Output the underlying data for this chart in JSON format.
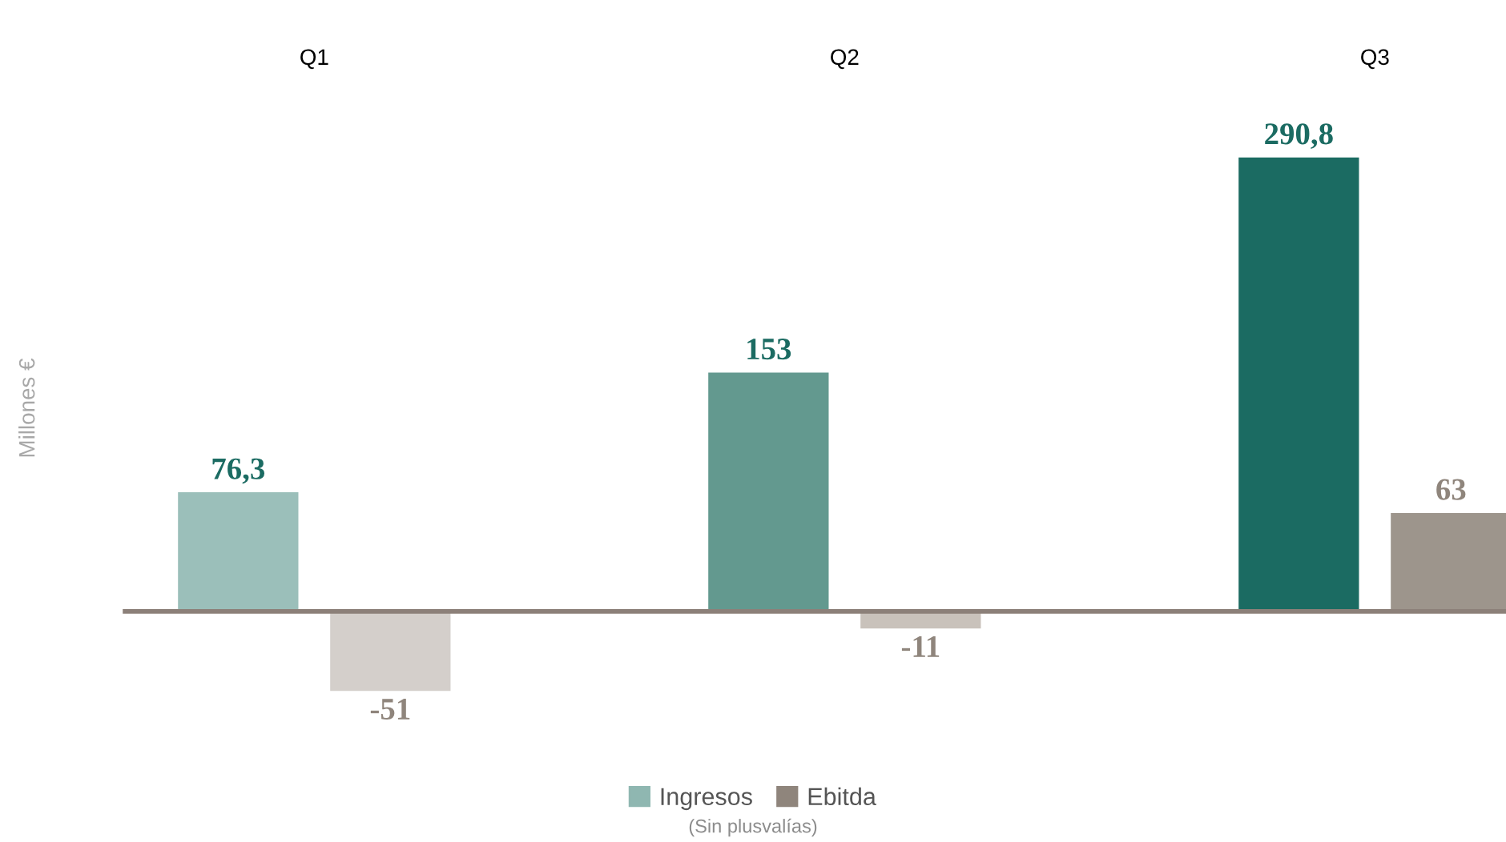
{
  "chart_data": {
    "type": "bar",
    "categories": [
      "Q1",
      "Q2",
      "Q3"
    ],
    "ylabel": "Millones €",
    "grid": false,
    "legend": "bottom",
    "tick_labels": "x",
    "series": [
      {
        "name": "Ingresos",
        "color": "#8fb7b1",
        "colors": [
          "#9bbfba",
          "#63998f",
          "#1b6b62"
        ],
        "values": [
          76.3,
          153,
          290.8
        ],
        "value_labels": [
          "76,3",
          "153",
          "290,8"
        ]
      },
      {
        "name": "Ebitda",
        "color": "#8f857c",
        "colors": [
          "#d4cfcb",
          "#c9c2bb",
          "#9d958c"
        ],
        "values": [
          -51,
          -11,
          63
        ],
        "value_labels": [
          "-51",
          "-11",
          "63"
        ]
      }
    ],
    "annotations": [
      "(Sin plusvalías)"
    ]
  }
}
